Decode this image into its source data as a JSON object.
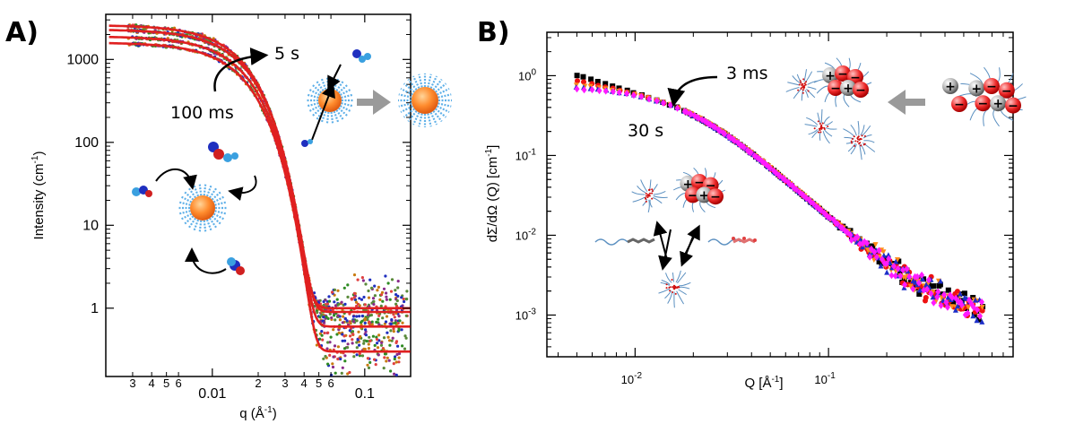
{
  "chart_data": [
    {
      "type": "scatter",
      "panel_label": "A)",
      "xlabel": "q (Å",
      "xlabel_sup": "-1",
      "xlabel_end": ")",
      "ylabel": "Intensity (cm",
      "ylabel_sup": "-1",
      "ylabel_end": ")",
      "x_scale": "log",
      "y_scale": "log",
      "xlim": [
        0.002,
        0.2
      ],
      "ylim": [
        0.15,
        3500
      ],
      "x_major_ticks": [
        {
          "value": 0.01,
          "label": "0.01"
        },
        {
          "value": 0.1,
          "label": "0.1"
        }
      ],
      "x_minor_ticks": [
        {
          "value": 0.003,
          "label": "3"
        },
        {
          "value": 0.004,
          "label": "4"
        },
        {
          "value": 0.005,
          "label": "5"
        },
        {
          "value": 0.006,
          "label": "6"
        },
        {
          "value": 0.02,
          "label": "2"
        },
        {
          "value": 0.03,
          "label": "3"
        },
        {
          "value": 0.04,
          "label": "4"
        },
        {
          "value": 0.05,
          "label": "5"
        },
        {
          "value": 0.06,
          "label": "6"
        }
      ],
      "y_ticks": [
        {
          "value": 1,
          "label": "1"
        },
        {
          "value": 10,
          "label": "10"
        },
        {
          "value": 100,
          "label": "100"
        },
        {
          "value": 1000,
          "label": "1000"
        }
      ],
      "series": [
        {
          "color": "#e02020",
          "I0": 1600,
          "Rg": 110,
          "bg": 0.3
        },
        {
          "color": "#e02020",
          "I0": 1900,
          "Rg": 110,
          "bg": 0.6
        },
        {
          "color": "#e02020",
          "I0": 2300,
          "Rg": 110,
          "bg": 0.9
        },
        {
          "color": "#e02020",
          "I0": 2600,
          "Rg": 112,
          "bg": 1.0
        }
      ],
      "point_colors": [
        "#2e8b22",
        "#1f2fbf",
        "#c87a10",
        "#8a2b8a",
        "#e04040",
        "#5a8a3a"
      ],
      "annotations": [
        {
          "text": "5 s",
          "kind": "time"
        },
        {
          "text": "100 ms",
          "kind": "time"
        }
      ]
    },
    {
      "type": "scatter",
      "panel_label": "B)",
      "xlabel": "Q [Å",
      "xlabel_sup": "-1",
      "xlabel_end": "]",
      "ylabel": "dΣ/dΩ (Q) [cm",
      "ylabel_sup": "-1",
      "ylabel_end": "]",
      "x_scale": "log",
      "y_scale": "log",
      "xlim": [
        0.0035,
        0.9
      ],
      "ylim": [
        0.0003,
        3.5
      ],
      "x_ticks": [
        {
          "value": 0.01,
          "base": "10",
          "exp": "-2"
        },
        {
          "value": 0.1,
          "base": "10",
          "exp": "-1"
        }
      ],
      "y_ticks": [
        {
          "value": 0.001,
          "base": "10",
          "exp": "-3"
        },
        {
          "value": 0.01,
          "base": "10",
          "exp": "-2"
        },
        {
          "value": 0.1,
          "base": "10",
          "exp": "-1"
        },
        {
          "value": 1,
          "base": "10",
          "exp": "0"
        }
      ],
      "series": [
        {
          "color": "#000000",
          "marker": "square",
          "I0": 2.3
        },
        {
          "color": "#ee1111",
          "marker": "circle",
          "I0": 1.6
        },
        {
          "color": "#ff8c1a",
          "marker": "triangle-down",
          "I0": 1.1
        },
        {
          "color": "#1c2ec8",
          "marker": "triangle-up",
          "I0": 0.9
        },
        {
          "color": "#ff1aff",
          "marker": "diamond",
          "I0": 0.72
        }
      ],
      "annotations": [
        {
          "text": "3 ms",
          "kind": "time"
        },
        {
          "text": "30 s",
          "kind": "time"
        }
      ]
    }
  ]
}
